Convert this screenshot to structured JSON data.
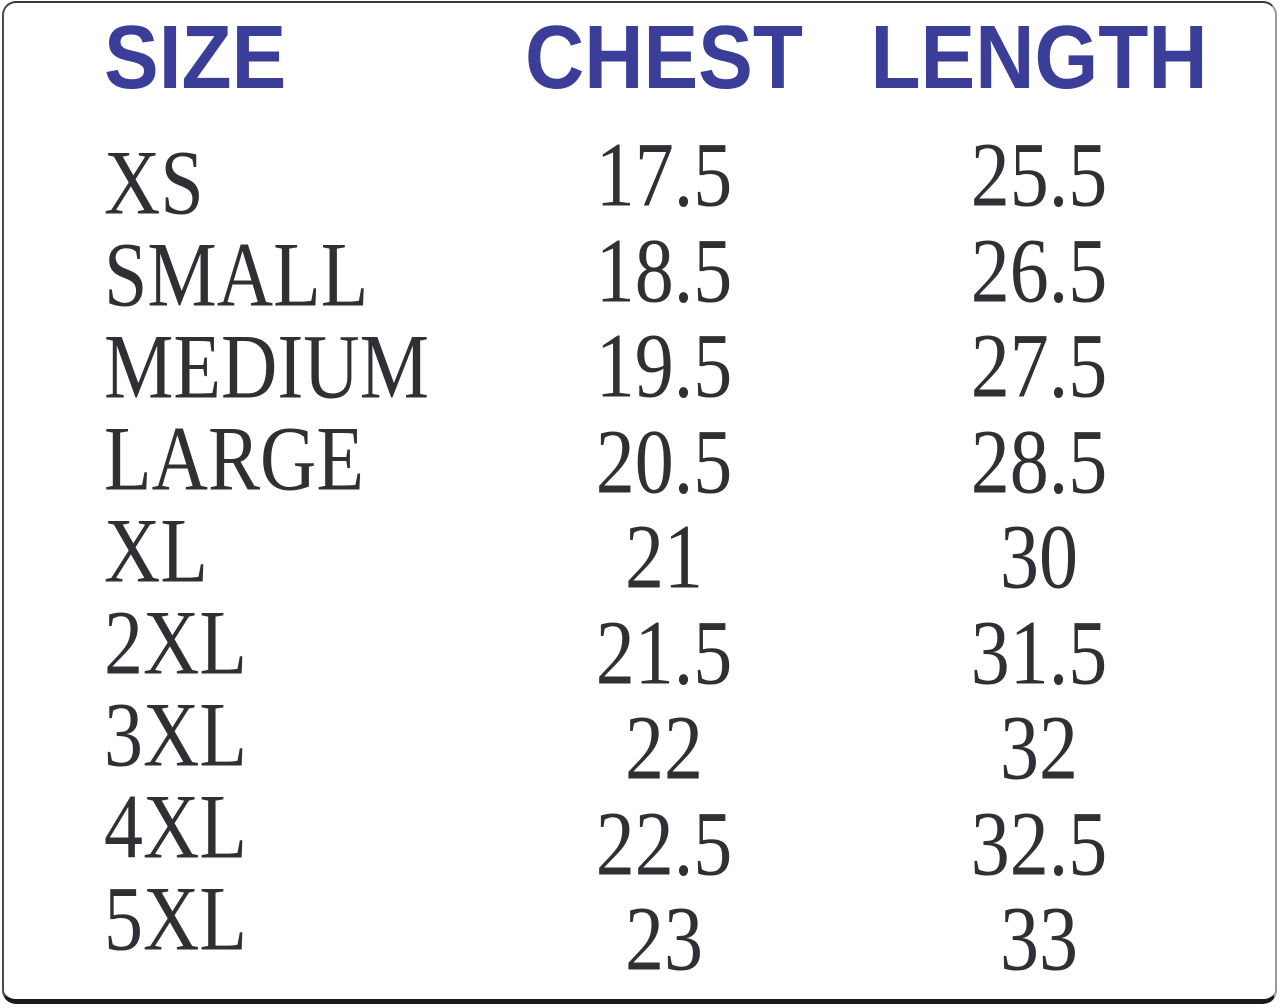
{
  "chart_data": {
    "type": "table",
    "columns": [
      "SIZE",
      "CHEST",
      "LENGTH"
    ],
    "rows": [
      {
        "size": "XS",
        "chest": "17.5",
        "length": "25.5"
      },
      {
        "size": "SMALL",
        "chest": "18.5",
        "length": "26.5"
      },
      {
        "size": "MEDIUM",
        "chest": "19.5",
        "length": "27.5"
      },
      {
        "size": "LARGE",
        "chest": "20.5",
        "length": "28.5"
      },
      {
        "size": "XL",
        "chest": "21",
        "length": "30"
      },
      {
        "size": "2XL",
        "chest": "21.5",
        "length": "31.5"
      },
      {
        "size": "3XL",
        "chest": "22",
        "length": "32"
      },
      {
        "size": "4XL",
        "chest": "22.5",
        "length": "32.5"
      },
      {
        "size": "5XL",
        "chest": "23",
        "length": "33"
      }
    ],
    "layout": {
      "grid": "off",
      "header_position": "top"
    }
  },
  "colors": {
    "header_text": "#3a3e99",
    "body_text": "#2e3033",
    "border_dark": "#1a1a1a",
    "background": "#ffffff"
  }
}
